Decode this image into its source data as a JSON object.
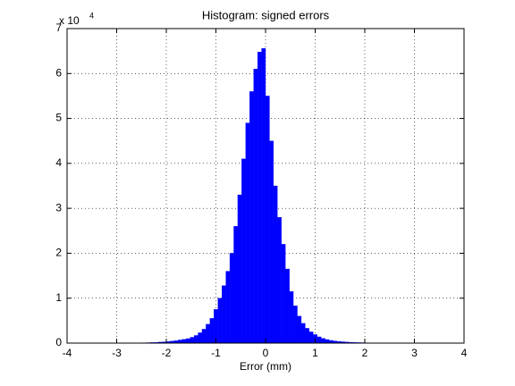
{
  "chart_data": {
    "type": "histogram",
    "title": "Histogram: signed errors",
    "x_label": "Error (mm)",
    "y_scale_label": "x 10",
    "y_scale_exponent": "4",
    "bins": [
      -4,
      -3.92,
      -3.84,
      -3.76,
      -3.68,
      -3.6,
      -3.52,
      -3.44,
      -3.36,
      -3.28,
      -3.2,
      -3.12,
      -3.04,
      -2.96,
      -2.88,
      -2.8,
      -2.72,
      -2.64,
      -2.56,
      -2.48,
      -2.4,
      -2.32,
      -2.24,
      -2.16,
      -2.08,
      -2,
      -1.92,
      -1.84,
      -1.76,
      -1.68,
      -1.6,
      -1.52,
      -1.44,
      -1.36,
      -1.28,
      -1.2,
      -1.12,
      -1.04,
      -0.96,
      -0.88,
      -0.8,
      -0.72,
      -0.64,
      -0.56,
      -0.48,
      -0.4,
      -0.32,
      -0.24,
      -0.16,
      -0.08,
      0,
      0.08,
      0.16,
      0.24,
      0.32,
      0.4,
      0.48,
      0.56,
      0.64,
      0.72,
      0.8,
      0.88,
      0.96,
      1.04,
      1.12,
      1.2,
      1.28,
      1.36,
      1.44,
      1.52,
      1.6,
      1.68,
      1.76,
      1.84,
      1.92,
      2,
      2.08,
      2.16,
      2.24,
      2.32,
      2.4,
      2.48,
      2.56,
      2.64,
      2.72,
      2.8,
      2.88,
      2.96,
      3.04,
      3.12,
      3.2,
      3.28,
      3.36,
      3.44,
      3.52,
      3.6,
      3.68,
      3.76,
      3.84,
      3.92,
      4
    ],
    "values": [
      5,
      5,
      6,
      6,
      7,
      8,
      9,
      10,
      12,
      14,
      16,
      18,
      21,
      25,
      30,
      35,
      42,
      50,
      65,
      80,
      100,
      130,
      170,
      220,
      280,
      350,
      450,
      550,
      700,
      850,
      1000,
      1300,
      1700,
      2300,
      3100,
      4200,
      5500,
      7500,
      10000,
      12800,
      16000,
      20000,
      26000,
      33000,
      41000,
      49000,
      56000,
      61000,
      64800,
      65600,
      55000,
      45000,
      35000,
      28000,
      22000,
      16500,
      11500,
      8300,
      6000,
      4400,
      3300,
      2500,
      1900,
      1400,
      1050,
      800,
      600,
      480,
      380,
      300,
      240,
      190,
      150,
      120,
      100,
      80,
      60,
      45,
      35,
      25,
      20,
      16,
      13,
      11,
      9,
      8,
      7,
      6,
      5,
      5,
      4,
      4,
      3,
      3,
      3,
      2,
      2,
      2,
      2,
      2
    ],
    "color": "#0000ff",
    "xlim": [
      -4,
      4
    ],
    "xticks": [
      -4,
      -3,
      -2,
      -1,
      0,
      1,
      2,
      3,
      4
    ],
    "ylim": [
      0,
      70000
    ],
    "yticks": [
      0,
      {
        "value": 10000,
        "label": "1"
      },
      {
        "value": 20000,
        "label": "2"
      },
      {
        "value": 30000,
        "label": "3"
      },
      {
        "value": 40000,
        "label": "4"
      },
      {
        "value": 50000,
        "label": "5"
      },
      {
        "value": 60000,
        "label": "6"
      },
      {
        "value": 70000,
        "label": "7"
      }
    ],
    "grid": true
  }
}
